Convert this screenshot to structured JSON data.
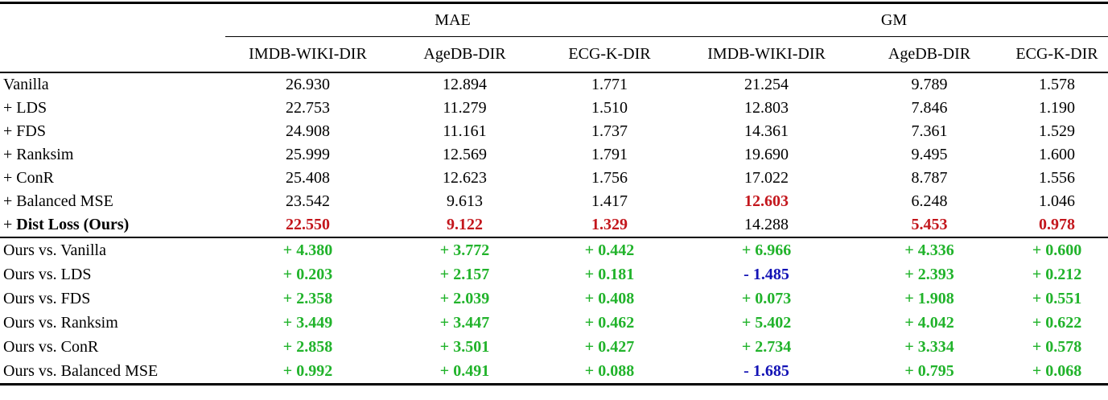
{
  "table": {
    "colors": {
      "best_value": "#c3161c",
      "improvement": "#21b32b",
      "regression": "#1212b5"
    },
    "group_headers": [
      {
        "label": "MAE",
        "span": 3
      },
      {
        "label": "GM",
        "span": 3
      }
    ],
    "column_headers": [
      "IMDB-WIKI-DIR",
      "AgeDB-DIR",
      "ECG-K-DIR",
      "IMDB-WIKI-DIR",
      "AgeDB-DIR",
      "ECG-K-DIR"
    ],
    "method_rows": [
      {
        "prefix": "",
        "name": "Vanilla",
        "name_bold": false,
        "values": [
          {
            "text": "26.930",
            "style": "plain"
          },
          {
            "text": "12.894",
            "style": "plain"
          },
          {
            "text": "1.771",
            "style": "plain"
          },
          {
            "text": "21.254",
            "style": "plain"
          },
          {
            "text": "9.789",
            "style": "plain"
          },
          {
            "text": "1.578",
            "style": "plain"
          }
        ]
      },
      {
        "prefix": "+ ",
        "name": "LDS",
        "name_bold": false,
        "values": [
          {
            "text": "22.753",
            "style": "plain"
          },
          {
            "text": "11.279",
            "style": "plain"
          },
          {
            "text": "1.510",
            "style": "plain"
          },
          {
            "text": "12.803",
            "style": "plain"
          },
          {
            "text": "7.846",
            "style": "plain"
          },
          {
            "text": "1.190",
            "style": "plain"
          }
        ]
      },
      {
        "prefix": "+ ",
        "name": "FDS",
        "name_bold": false,
        "values": [
          {
            "text": "24.908",
            "style": "plain"
          },
          {
            "text": "11.161",
            "style": "plain"
          },
          {
            "text": "1.737",
            "style": "plain"
          },
          {
            "text": "14.361",
            "style": "plain"
          },
          {
            "text": "7.361",
            "style": "plain"
          },
          {
            "text": "1.529",
            "style": "plain"
          }
        ]
      },
      {
        "prefix": "+ ",
        "name": "Ranksim",
        "name_bold": false,
        "values": [
          {
            "text": "25.999",
            "style": "plain"
          },
          {
            "text": "12.569",
            "style": "plain"
          },
          {
            "text": "1.791",
            "style": "plain"
          },
          {
            "text": "19.690",
            "style": "plain"
          },
          {
            "text": "9.495",
            "style": "plain"
          },
          {
            "text": "1.600",
            "style": "plain"
          }
        ]
      },
      {
        "prefix": "+ ",
        "name": "ConR",
        "name_bold": false,
        "values": [
          {
            "text": "25.408",
            "style": "plain"
          },
          {
            "text": "12.623",
            "style": "plain"
          },
          {
            "text": "1.756",
            "style": "plain"
          },
          {
            "text": "17.022",
            "style": "plain"
          },
          {
            "text": "8.787",
            "style": "plain"
          },
          {
            "text": "1.556",
            "style": "plain"
          }
        ]
      },
      {
        "prefix": "+ ",
        "name": "Balanced MSE",
        "name_bold": false,
        "values": [
          {
            "text": "23.542",
            "style": "plain"
          },
          {
            "text": "9.613",
            "style": "plain"
          },
          {
            "text": "1.417",
            "style": "plain"
          },
          {
            "text": "12.603",
            "style": "best"
          },
          {
            "text": "6.248",
            "style": "plain"
          },
          {
            "text": "1.046",
            "style": "plain"
          }
        ]
      },
      {
        "prefix": "+ ",
        "name": "Dist Loss (Ours)",
        "name_bold": true,
        "values": [
          {
            "text": "22.550",
            "style": "best"
          },
          {
            "text": "9.122",
            "style": "best"
          },
          {
            "text": "1.329",
            "style": "best"
          },
          {
            "text": "14.288",
            "style": "plain"
          },
          {
            "text": "5.453",
            "style": "best"
          },
          {
            "text": "0.978",
            "style": "best"
          }
        ]
      }
    ],
    "comparison_rows": [
      {
        "name": "Ours vs. Vanilla",
        "values": [
          {
            "text": "+ 4.380",
            "style": "gain"
          },
          {
            "text": "+ 3.772",
            "style": "gain"
          },
          {
            "text": "+ 0.442",
            "style": "gain"
          },
          {
            "text": "+ 6.966",
            "style": "gain"
          },
          {
            "text": "+ 4.336",
            "style": "gain"
          },
          {
            "text": "+ 0.600",
            "style": "gain"
          }
        ]
      },
      {
        "name": "Ours vs. LDS",
        "values": [
          {
            "text": "+ 0.203",
            "style": "gain"
          },
          {
            "text": "+ 2.157",
            "style": "gain"
          },
          {
            "text": "+ 0.181",
            "style": "gain"
          },
          {
            "text": "- 1.485",
            "style": "loss"
          },
          {
            "text": "+ 2.393",
            "style": "gain"
          },
          {
            "text": "+ 0.212",
            "style": "gain"
          }
        ]
      },
      {
        "name": "Ours vs. FDS",
        "values": [
          {
            "text": "+ 2.358",
            "style": "gain"
          },
          {
            "text": "+ 2.039",
            "style": "gain"
          },
          {
            "text": "+ 0.408",
            "style": "gain"
          },
          {
            "text": "+ 0.073",
            "style": "gain"
          },
          {
            "text": "+ 1.908",
            "style": "gain"
          },
          {
            "text": "+ 0.551",
            "style": "gain"
          }
        ]
      },
      {
        "name": "Ours vs. Ranksim",
        "values": [
          {
            "text": "+ 3.449",
            "style": "gain"
          },
          {
            "text": "+ 3.447",
            "style": "gain"
          },
          {
            "text": "+ 0.462",
            "style": "gain"
          },
          {
            "text": "+ 5.402",
            "style": "gain"
          },
          {
            "text": "+ 4.042",
            "style": "gain"
          },
          {
            "text": "+ 0.622",
            "style": "gain"
          }
        ]
      },
      {
        "name": "Ours vs. ConR",
        "values": [
          {
            "text": "+ 2.858",
            "style": "gain"
          },
          {
            "text": "+ 3.501",
            "style": "gain"
          },
          {
            "text": "+ 0.427",
            "style": "gain"
          },
          {
            "text": "+ 2.734",
            "style": "gain"
          },
          {
            "text": "+ 3.334",
            "style": "gain"
          },
          {
            "text": "+ 0.578",
            "style": "gain"
          }
        ]
      },
      {
        "name": "Ours vs. Balanced MSE",
        "values": [
          {
            "text": "+ 0.992",
            "style": "gain"
          },
          {
            "text": "+ 0.491",
            "style": "gain"
          },
          {
            "text": "+ 0.088",
            "style": "gain"
          },
          {
            "text": "- 1.685",
            "style": "loss"
          },
          {
            "text": "+ 0.795",
            "style": "gain"
          },
          {
            "text": "+ 0.068",
            "style": "gain"
          }
        ]
      }
    ]
  }
}
